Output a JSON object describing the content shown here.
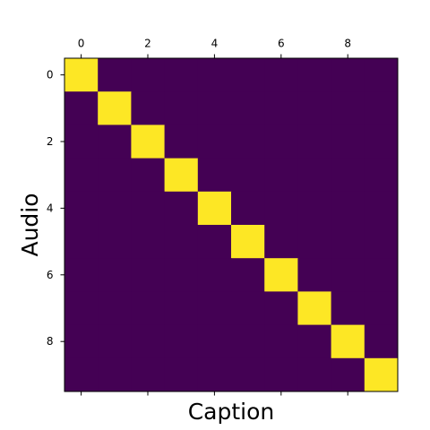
{
  "chart_data": {
    "type": "heatmap",
    "xlabel": "Caption",
    "ylabel": "Audio",
    "x_ticks": [
      0,
      2,
      4,
      6,
      8
    ],
    "y_ticks": [
      0,
      2,
      4,
      6,
      8
    ],
    "x_tick_position": "top",
    "grid": false,
    "colormap": "viridis",
    "low_color": "#440154",
    "high_color": "#fde725",
    "axis_color": "#000000",
    "rows": 10,
    "cols": 10,
    "matrix": [
      [
        1,
        0,
        0,
        0,
        0,
        0,
        0,
        0,
        0,
        0
      ],
      [
        0,
        1,
        0,
        0,
        0,
        0,
        0,
        0,
        0,
        0
      ],
      [
        0,
        0,
        1,
        0,
        0,
        0,
        0,
        0,
        0,
        0
      ],
      [
        0,
        0,
        0,
        1,
        0,
        0,
        0,
        0,
        0,
        0
      ],
      [
        0,
        0,
        0,
        0,
        1,
        0,
        0,
        0,
        0,
        0
      ],
      [
        0,
        0,
        0,
        0,
        0,
        1,
        0,
        0,
        0,
        0
      ],
      [
        0,
        0,
        0,
        0,
        0,
        0,
        1,
        0,
        0,
        0
      ],
      [
        0,
        0,
        0,
        0,
        0,
        0,
        0,
        1,
        0,
        0
      ],
      [
        0,
        0,
        0,
        0,
        0,
        0,
        0,
        0,
        1,
        0
      ],
      [
        0,
        0,
        0,
        0,
        0,
        0,
        0,
        0,
        0,
        1
      ]
    ]
  }
}
